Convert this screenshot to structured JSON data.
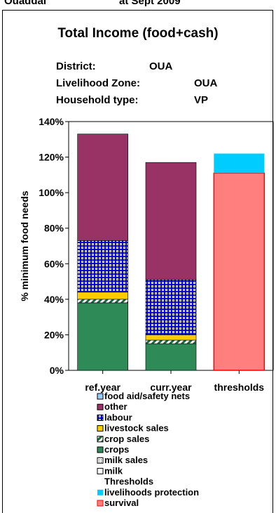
{
  "header_fragment": {
    "left": "Ouaddai",
    "right": "at Sept 2009"
  },
  "info": {
    "district_label": "District:",
    "district_value": "OUA",
    "zone_label": "Livelihood Zone:",
    "zone_value": "OUA",
    "household_label": "Household type:",
    "household_value": "VP"
  },
  "chart_data": {
    "type": "bar",
    "title": "Total Income (food+cash)",
    "ylabel": "% minimum food needs",
    "xlabel": "",
    "ylim": [
      0,
      140
    ],
    "yticks": [
      "0%",
      "20%",
      "40%",
      "60%",
      "80%",
      "100%",
      "120%",
      "140%"
    ],
    "categories": [
      "ref.year",
      "curr.year",
      "thresholds"
    ],
    "stacked": true,
    "series": [
      {
        "name": "milk",
        "color": "#ffffff",
        "values": [
          0,
          0,
          0
        ]
      },
      {
        "name": "milk sales",
        "color": "#ffffff",
        "values": [
          0,
          0,
          0
        ]
      },
      {
        "name": "crops",
        "color": "#2e8b57",
        "values": [
          38,
          15,
          0
        ]
      },
      {
        "name": "crop sales",
        "color": "#2e8b57",
        "pattern": "diagonal",
        "values": [
          2,
          2,
          0
        ]
      },
      {
        "name": "livestock sales",
        "color": "#ffcc00",
        "values": [
          4,
          3,
          0
        ]
      },
      {
        "name": "labour",
        "color": "#0000cc",
        "pattern": "grid",
        "values": [
          29,
          31,
          0
        ]
      },
      {
        "name": "other",
        "color": "#993366",
        "values": [
          60,
          66,
          0
        ]
      },
      {
        "name": "food aid/safety nets",
        "color": "#99ccff",
        "values": [
          0,
          0,
          0
        ]
      },
      {
        "name": "survival",
        "color": "#ff7f7f",
        "values": [
          0,
          0,
          111
        ]
      },
      {
        "name": "livelihoods protection",
        "color": "#00ccff",
        "values": [
          0,
          0,
          11
        ]
      }
    ],
    "legend_title_thresholds": "Thresholds",
    "legend": [
      {
        "label": "food aid/safety nets",
        "swatch": "food-aid"
      },
      {
        "label": "other",
        "swatch": "other"
      },
      {
        "label": "labour",
        "swatch": "labour"
      },
      {
        "label": "livestock sales",
        "swatch": "livestock"
      },
      {
        "label": "crop sales",
        "swatch": "cropsales"
      },
      {
        "label": "crops",
        "swatch": "crops"
      },
      {
        "label": "milk sales",
        "swatch": "milksales"
      },
      {
        "label": "milk",
        "swatch": "milk"
      },
      {
        "label": "Thresholds",
        "swatch": "none"
      },
      {
        "label": "livelihoods protection",
        "swatch": "lp"
      },
      {
        "label": "survival",
        "swatch": "survival"
      }
    ],
    "legend_placement": "bottom",
    "grid": false
  }
}
